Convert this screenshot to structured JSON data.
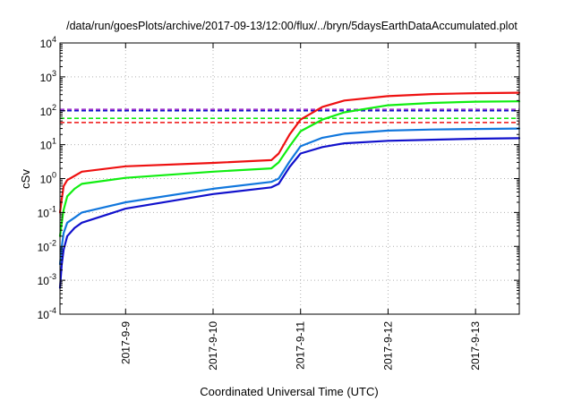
{
  "chart_data": {
    "type": "line",
    "title": "/data/run/goesPlots/archive/2017-09-13/12:00/flux/../bryn/5daysEarthDataAccumulated.plot",
    "xlabel": "Coordinated Universal Time (UTC)",
    "ylabel": "cSv",
    "y_scale": "log",
    "ylim": [
      0.0001,
      10000
    ],
    "xlim": [
      "2017-09-08T06:00",
      "2017-09-13T12:00"
    ],
    "grid": true,
    "legend": "none",
    "x_ticks": [
      {
        "value": "2017-09-09T00:00",
        "label": "2017-9-9"
      },
      {
        "value": "2017-09-10T00:00",
        "label": "2017-9-10"
      },
      {
        "value": "2017-09-11T00:00",
        "label": "2017-9-11"
      },
      {
        "value": "2017-09-12T00:00",
        "label": "2017-9-12"
      },
      {
        "value": "2017-09-13T00:00",
        "label": "2017-9-13"
      }
    ],
    "y_ticks": [
      {
        "value": 0.0001,
        "base": "10",
        "exp": "-4"
      },
      {
        "value": 0.001,
        "base": "10",
        "exp": "-3"
      },
      {
        "value": 0.01,
        "base": "10",
        "exp": "-2"
      },
      {
        "value": 0.1,
        "base": "10",
        "exp": "-1"
      },
      {
        "value": 1,
        "base": "10",
        "exp": "0"
      },
      {
        "value": 10,
        "base": "10",
        "exp": "1"
      },
      {
        "value": 100,
        "base": "10",
        "exp": "2"
      },
      {
        "value": 1000,
        "base": "10",
        "exp": "3"
      },
      {
        "value": 10000,
        "base": "10",
        "exp": "4"
      }
    ],
    "series": [
      {
        "color": "#ee1111",
        "x": [
          "2017-09-08T06:00",
          "2017-09-08T06:30",
          "2017-09-08T07:00",
          "2017-09-08T08:00",
          "2017-09-08T10:00",
          "2017-09-08T12:00",
          "2017-09-09T00:00",
          "2017-09-10T00:00",
          "2017-09-10T16:00",
          "2017-09-10T18:00",
          "2017-09-10T21:00",
          "2017-09-11T00:00",
          "2017-09-11T06:00",
          "2017-09-11T12:00",
          "2017-09-12T00:00",
          "2017-09-12T12:00",
          "2017-09-13T00:00",
          "2017-09-13T12:00"
        ],
        "y": [
          0.1,
          0.25,
          0.6,
          0.9,
          1.2,
          1.6,
          2.3,
          2.9,
          3.5,
          5.5,
          20,
          55,
          130,
          200,
          270,
          310,
          330,
          340
        ]
      },
      {
        "color": "#11ee11",
        "x": [
          "2017-09-08T06:00",
          "2017-09-08T06:30",
          "2017-09-08T07:00",
          "2017-09-08T08:00",
          "2017-09-08T10:00",
          "2017-09-08T12:00",
          "2017-09-09T00:00",
          "2017-09-10T00:00",
          "2017-09-10T16:00",
          "2017-09-10T18:00",
          "2017-09-10T21:00",
          "2017-09-11T00:00",
          "2017-09-11T06:00",
          "2017-09-11T12:00",
          "2017-09-12T00:00",
          "2017-09-12T12:00",
          "2017-09-13T00:00",
          "2017-09-13T12:00"
        ],
        "y": [
          0.02,
          0.05,
          0.12,
          0.3,
          0.5,
          0.7,
          1.05,
          1.6,
          2.0,
          3.0,
          9,
          25,
          55,
          90,
          145,
          170,
          185,
          190
        ]
      },
      {
        "color": "#1177dd",
        "x": [
          "2017-09-08T06:00",
          "2017-09-08T06:30",
          "2017-09-08T07:00",
          "2017-09-08T08:00",
          "2017-09-08T10:00",
          "2017-09-08T12:00",
          "2017-09-09T00:00",
          "2017-09-10T00:00",
          "2017-09-10T16:00",
          "2017-09-10T18:00",
          "2017-09-10T21:00",
          "2017-09-11T00:00",
          "2017-09-11T06:00",
          "2017-09-11T12:00",
          "2017-09-12T00:00",
          "2017-09-12T12:00",
          "2017-09-13T00:00",
          "2017-09-13T12:00"
        ],
        "y": [
          0.003,
          0.01,
          0.025,
          0.05,
          0.07,
          0.1,
          0.2,
          0.5,
          0.8,
          1.0,
          3.2,
          9,
          16,
          21,
          26,
          28,
          29,
          30
        ]
      },
      {
        "color": "#1111cc",
        "x": [
          "2017-09-08T06:00",
          "2017-09-08T06:30",
          "2017-09-08T07:00",
          "2017-09-08T08:00",
          "2017-09-08T10:00",
          "2017-09-08T12:00",
          "2017-09-09T00:00",
          "2017-09-10T00:00",
          "2017-09-10T16:00",
          "2017-09-10T18:00",
          "2017-09-10T21:00",
          "2017-09-11T00:00",
          "2017-09-11T06:00",
          "2017-09-11T12:00",
          "2017-09-12T00:00",
          "2017-09-12T12:00",
          "2017-09-13T00:00",
          "2017-09-13T12:00"
        ],
        "y": [
          0.0006,
          0.003,
          0.008,
          0.02,
          0.035,
          0.05,
          0.13,
          0.35,
          0.55,
          0.7,
          2.2,
          5.5,
          8.5,
          11,
          13,
          14,
          15,
          15.5
        ]
      }
    ],
    "reference_lines": [
      {
        "y": 110,
        "color": "#9933cc"
      },
      {
        "y": 100,
        "color": "#1111cc"
      },
      {
        "y": 60,
        "color": "#11ee11"
      },
      {
        "y": 45,
        "color": "#ee1111"
      }
    ]
  }
}
